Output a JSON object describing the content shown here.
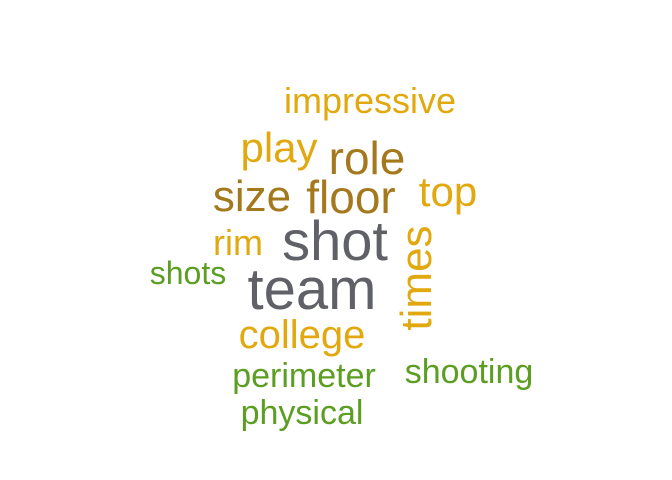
{
  "palette": {
    "gold": "#E1A90F",
    "brown": "#A4791E",
    "gray": "#5F6167",
    "green": "#5B9E22"
  },
  "words": [
    {
      "key": "w-impressive",
      "text": "impressive",
      "color": "#E1A90F"
    },
    {
      "key": "w-play",
      "text": "play",
      "color": "#E1A90F"
    },
    {
      "key": "w-role",
      "text": "role",
      "color": "#A4791E"
    },
    {
      "key": "w-size",
      "text": "size",
      "color": "#A4791E"
    },
    {
      "key": "w-floor",
      "text": "floor",
      "color": "#A4791E"
    },
    {
      "key": "w-top",
      "text": "top",
      "color": "#E1A90F"
    },
    {
      "key": "w-rim",
      "text": "rim",
      "color": "#E1A90F"
    },
    {
      "key": "w-shot",
      "text": "shot",
      "color": "#5F6167"
    },
    {
      "key": "w-times",
      "text": "times",
      "color": "#E1A90F"
    },
    {
      "key": "w-shots",
      "text": "shots",
      "color": "#5B9E22"
    },
    {
      "key": "w-team",
      "text": "team",
      "color": "#5F6167"
    },
    {
      "key": "w-college",
      "text": "college",
      "color": "#E1A90F"
    },
    {
      "key": "w-perimeter",
      "text": "perimeter",
      "color": "#5B9E22"
    },
    {
      "key": "w-shooting",
      "text": "shooting",
      "color": "#5B9E22"
    },
    {
      "key": "w-physical",
      "text": "physical",
      "color": "#5B9E22"
    }
  ]
}
